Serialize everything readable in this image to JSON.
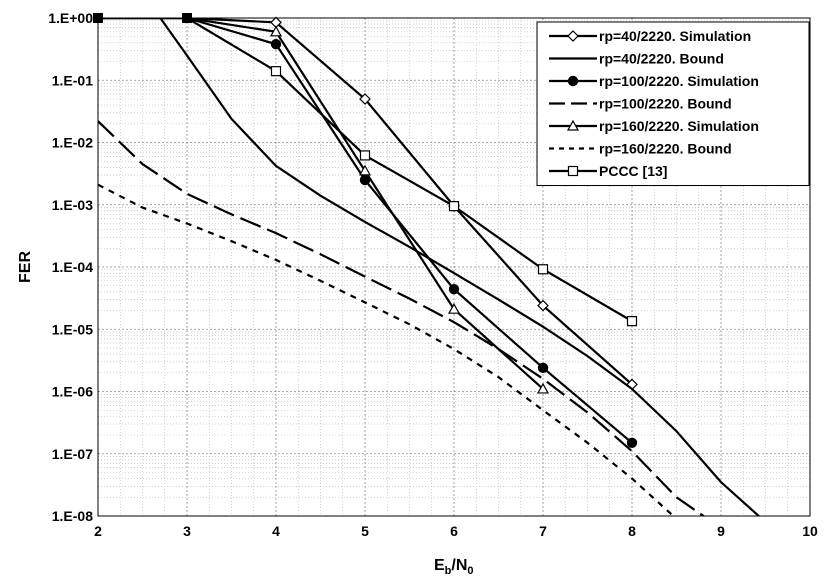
{
  "chart_data": {
    "type": "line",
    "xlabel": "Eb/N0",
    "xlabel_main": "E",
    "xlabel_sub1": "b",
    "xlabel_mid": "/N",
    "xlabel_sub2": "0",
    "ylabel": "FER",
    "xlim": [
      2,
      10
    ],
    "ylim": [
      1e-08,
      1
    ],
    "yscale": "log",
    "x_ticks": [
      "2",
      "3",
      "4",
      "5",
      "6",
      "7",
      "8",
      "9",
      "10"
    ],
    "y_ticks": [
      "1.E+00",
      "1.E-01",
      "1.E-02",
      "1.E-03",
      "1.E-04",
      "1.E-05",
      "1.E-06",
      "1.E-07",
      "1.E-08"
    ],
    "grid": true,
    "minor_grid": true,
    "legend_position": "top-right",
    "series": [
      {
        "name": "rp=40/2220. Simulation",
        "style": "solid",
        "marker": "diamond",
        "x": [
          2,
          3,
          4,
          5,
          6,
          7,
          8
        ],
        "y": [
          1.0,
          1.0,
          0.85,
          0.05,
          0.00095,
          2.4e-05,
          1.3e-06
        ]
      },
      {
        "name": "rp=40/2220. Bound",
        "style": "solid",
        "marker": "none",
        "x": [
          2.7,
          3,
          3.5,
          4,
          4.5,
          5,
          5.5,
          6,
          6.5,
          7,
          7.5,
          8,
          8.5,
          9,
          9.5
        ],
        "y": [
          1.0,
          0.25,
          0.024,
          0.0042,
          0.0014,
          0.00053,
          0.00021,
          8e-05,
          3e-05,
          1.1e-05,
          3.7e-06,
          1.1e-06,
          2.3e-07,
          3.5e-08,
          8e-09
        ]
      },
      {
        "name": "rp=100/2220. Simulation",
        "style": "solid",
        "marker": "circle",
        "x": [
          2,
          3,
          4,
          5,
          6,
          7,
          8
        ],
        "y": [
          1.0,
          1.0,
          0.38,
          0.0025,
          4.4e-05,
          2.4e-06,
          1.5e-07
        ]
      },
      {
        "name": "rp=100/2220. Bound",
        "style": "longdash",
        "marker": "none",
        "x": [
          2,
          2.5,
          3,
          3.5,
          4,
          4.5,
          5,
          5.5,
          6,
          6.5,
          7,
          7.5,
          8,
          8.5,
          8.9
        ],
        "y": [
          0.022,
          0.0045,
          0.0015,
          0.0007,
          0.00035,
          0.00016,
          7e-05,
          3.1e-05,
          1.3e-05,
          4.8e-06,
          1.6e-06,
          4.6e-07,
          1.1e-07,
          2e-08,
          8e-09
        ]
      },
      {
        "name": "rp=160/2220. Simulation",
        "style": "solid",
        "marker": "triangle",
        "x": [
          2,
          3,
          4,
          5,
          6,
          7
        ],
        "y": [
          1.0,
          1.0,
          0.6,
          0.0035,
          2.1e-05,
          1.1e-06
        ]
      },
      {
        "name": "rp=160/2220. Bound",
        "style": "shortdash",
        "marker": "none",
        "x": [
          2,
          2.5,
          3,
          3.5,
          4,
          4.5,
          5,
          5.5,
          6,
          6.5,
          7,
          7.5,
          8,
          8.5,
          8.6
        ],
        "y": [
          0.0021,
          0.0009,
          0.0005,
          0.00026,
          0.00013,
          6e-05,
          2.7e-05,
          1.2e-05,
          4.8e-06,
          1.7e-06,
          5e-07,
          1.5e-07,
          4e-08,
          9e-09,
          8e-09
        ]
      },
      {
        "name": "PCCC [13]",
        "style": "solid",
        "marker": "square",
        "x": [
          2,
          3,
          4,
          5,
          6,
          7,
          8
        ],
        "y": [
          1.0,
          1.0,
          0.14,
          0.0062,
          0.00095,
          9.2e-05,
          1.35e-05
        ]
      }
    ]
  }
}
